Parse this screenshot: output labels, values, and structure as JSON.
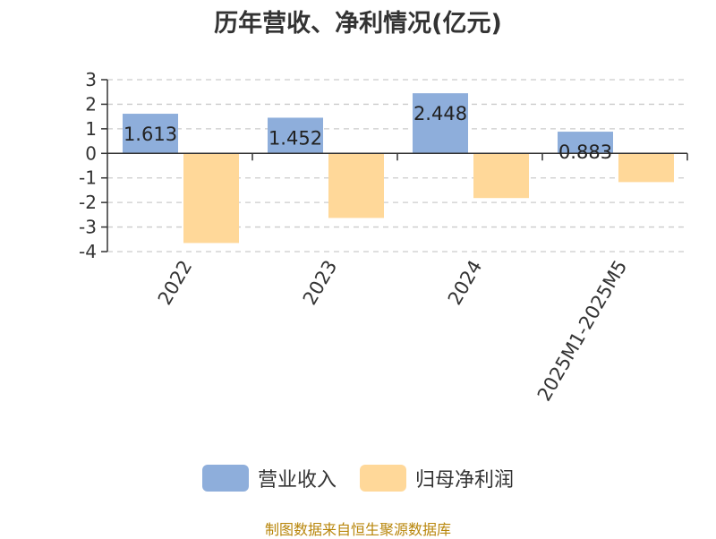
{
  "chart_data": {
    "type": "bar",
    "title": "历年营收、净利情况(亿元)",
    "categories": [
      "2022",
      "2023",
      "2024",
      "2025M1-2025M5"
    ],
    "series": [
      {
        "name": "营业收入",
        "values": [
          1.613,
          1.452,
          2.448,
          0.883
        ],
        "color": "#8eaedb",
        "show_labels": true
      },
      {
        "name": "归母净利润",
        "values": [
          -3.65,
          -2.63,
          -1.82,
          -1.17
        ],
        "color": "#ffd899",
        "show_labels": false
      }
    ],
    "ylim": [
      -4,
      3
    ],
    "yticks": [
      "-4",
      "-3",
      "-2",
      "-1",
      "0",
      "1",
      "2",
      "3"
    ],
    "grid": true,
    "legend": "bottom",
    "source": "制图数据来自恒生聚源数据库"
  }
}
